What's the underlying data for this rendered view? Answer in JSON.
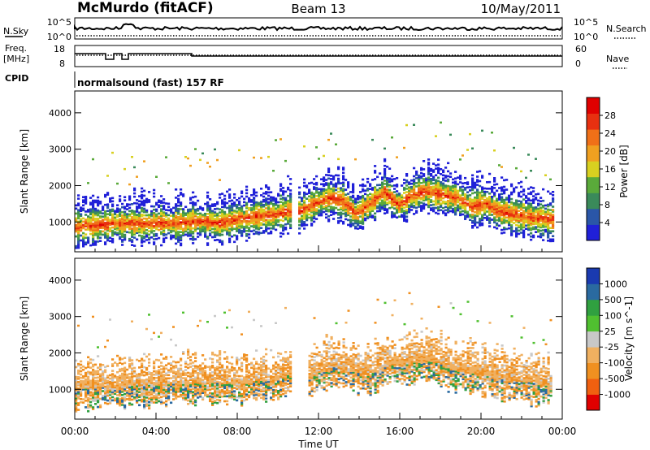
{
  "header": {
    "station": "McMurdo (fitACF)",
    "beam": "Beam 13",
    "date": "10/May/2011"
  },
  "top_panels": {
    "nsky_label": "N.Sky",
    "nsky_ticks": [
      "10^5",
      "10^0"
    ],
    "nsearch_label": "N.Search",
    "nsearch_ticks": [
      "10^5",
      "10^0"
    ],
    "freq_label": "Freq.",
    "freq_unit": "[MHz]",
    "freq_ticks": [
      "18",
      "8"
    ],
    "nave_label": "Nave",
    "nave_ticks": [
      "60",
      "0"
    ],
    "cpid_label": "CPID",
    "cpid_value": "normalsound (fast) 157 RF"
  },
  "colors": {
    "power": [
      "#2020d8",
      "#2a56a8",
      "#3a8a5a",
      "#5aaa3a",
      "#d8d020",
      "#f0a020",
      "#f07018",
      "#e83010",
      "#e00000"
    ],
    "velocity": [
      "#e00000",
      "#f06010",
      "#f09020",
      "#f0b060",
      "#c8c8c8",
      "#50c030",
      "#30a040",
      "#2a6aa0",
      "#1a3ab0"
    ]
  },
  "chart_data": [
    {
      "type": "heatmap",
      "title": "",
      "xlabel": "Time UT",
      "ylabel": "Slant Range [km]",
      "xlim": [
        0,
        24
      ],
      "ylim": [
        180,
        4600
      ],
      "xticks": [
        "00:00",
        "04:00",
        "08:00",
        "12:00",
        "16:00",
        "20:00",
        "00:00"
      ],
      "yticks": [
        "1000",
        "2000",
        "3000",
        "4000"
      ],
      "colorbar": {
        "label": "Power [dB]",
        "ticks": [
          "4",
          "8",
          "12",
          "16",
          "20",
          "24",
          "28"
        ],
        "range": [
          0,
          30
        ]
      },
      "series": [
        {
          "name": "band",
          "x": [
            0.0,
            1.0,
            2.0,
            3.0,
            4.0,
            5.0,
            6.0,
            7.0,
            8.0,
            9.0,
            10.0,
            10.6
          ],
          "y": [
            850,
            900,
            950,
            950,
            950,
            950,
            1000,
            950,
            1050,
            1150,
            1200,
            1300
          ]
        },
        {
          "name": "band",
          "x": [
            11.0,
            11.8,
            12.5,
            13.2,
            13.8,
            14.5,
            15.2,
            15.9,
            16.5,
            17.2,
            18.2,
            18.8,
            19.5,
            20.2,
            20.7,
            21.5,
            22.5,
            23.5
          ],
          "y": [
            1250,
            1500,
            1650,
            1550,
            1200,
            1500,
            1800,
            1450,
            1700,
            1850,
            1700,
            1650,
            1400,
            1500,
            1300,
            1200,
            1100,
            1050
          ]
        }
      ]
    },
    {
      "type": "heatmap",
      "title": "",
      "xlabel": "Time UT",
      "ylabel": "Slant Range [km]",
      "xlim": [
        0,
        24
      ],
      "ylim": [
        180,
        4600
      ],
      "xticks": [
        "00:00",
        "04:00",
        "08:00",
        "12:00",
        "16:00",
        "20:00",
        "00:00"
      ],
      "yticks": [
        "1000",
        "2000",
        "3000",
        "4000"
      ],
      "colorbar": {
        "label": "Velocity [m s^-1]",
        "ticks": [
          "1000",
          "500",
          "100",
          "25",
          "-25",
          "-100",
          "-500",
          "-1000"
        ]
      },
      "series": [
        {
          "name": "band",
          "x": [
            0.0,
            2.0,
            4.0,
            6.0,
            8.0,
            10.0,
            10.6
          ],
          "y": [
            1000,
            1050,
            1100,
            1150,
            1150,
            1250,
            1400
          ]
        },
        {
          "name": "band",
          "x": [
            11.5,
            12.5,
            13.5,
            14.5,
            15.5,
            16.5,
            17.5,
            18.5,
            19.5,
            20.5,
            21.5,
            22.5,
            23.5
          ],
          "y": [
            1300,
            1600,
            1500,
            1400,
            1650,
            1700,
            1800,
            1500,
            1450,
            1300,
            1250,
            1150,
            1100
          ]
        }
      ]
    }
  ]
}
